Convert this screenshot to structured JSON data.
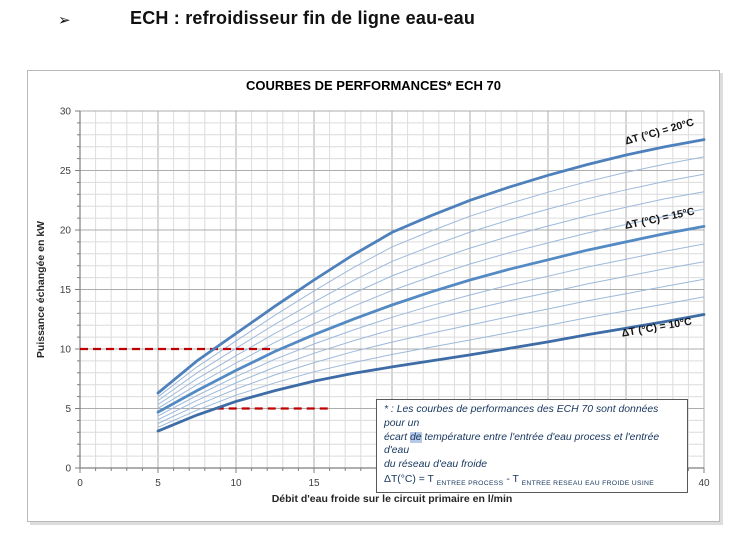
{
  "heading": {
    "bullet": "➢",
    "title": "ECH : refroidisseur fin de ligne eau-eau"
  },
  "chart": {
    "title": "COURBES DE PERFORMANCES* ECH 70"
  },
  "note": {
    "line1": "* : Les courbes de performances des ECH 70 sont données pour un",
    "line2_a": "écart ",
    "line2_b": "de",
    "line2_c": " température entre l'entrée d'eau process et l'entrée d'eau",
    "line3": "du réseau d'eau froide",
    "formula_a": "ΔT(°C) = T ",
    "formula_sub1": "ENTREE PROCESS",
    "formula_b": " - T ",
    "formula_sub2": "ENTREE RESEAU EAU FROIDE USINE"
  },
  "chart_data": {
    "type": "line",
    "title": "COURBES DE PERFORMANCES* ECH 70",
    "xlabel": "Débit d'eau froide sur le circuit primaire en l/min",
    "ylabel": "Puissance échangée en kW",
    "xlim": [
      0,
      40
    ],
    "ylim": [
      0,
      30
    ],
    "x_major_ticks": [
      0,
      5,
      10,
      15,
      20,
      25,
      30,
      35,
      40
    ],
    "y_major_ticks": [
      0,
      5,
      10,
      15,
      20,
      25,
      30
    ],
    "minor_grid_step_x": 1,
    "minor_grid_step_y": 1,
    "grid": true,
    "x": [
      5,
      7.5,
      10,
      12.5,
      15,
      17.5,
      20,
      22.5,
      25,
      27.5,
      30,
      32.5,
      35,
      37.5,
      40
    ],
    "series": [
      {
        "name": "ΔT (°C) = 20°C",
        "deltaT": 20,
        "color": "#4e80bc",
        "values": [
          6.3,
          9.0,
          11.3,
          13.6,
          15.8,
          17.9,
          19.8,
          21.2,
          22.5,
          23.6,
          24.6,
          25.5,
          26.3,
          27.0,
          27.6
        ]
      },
      {
        "name": "ΔT (°C) = 15°C",
        "deltaT": 15,
        "color": "#548ac4",
        "values": [
          4.7,
          6.5,
          8.2,
          9.8,
          11.2,
          12.5,
          13.7,
          14.8,
          15.8,
          16.7,
          17.5,
          18.3,
          19.0,
          19.7,
          20.3
        ]
      },
      {
        "name": "ΔT (°C) = 10°C",
        "deltaT": 10,
        "color": "#3d6ca6",
        "values": [
          3.1,
          4.45,
          5.6,
          6.5,
          7.3,
          7.95,
          8.5,
          9.0,
          9.5,
          10.05,
          10.6,
          11.2,
          11.75,
          12.3,
          12.9
        ]
      }
    ],
    "intermediate_curves": {
      "deltaT_values": [
        11,
        12,
        13,
        14,
        16,
        17,
        18,
        19
      ],
      "color": "#9db9dc",
      "method": "linear interpolation between labeled ΔT curves"
    },
    "series_labels": [
      {
        "text": "ΔT (°C) = 20°C",
        "x": 37.2,
        "y": 28.0,
        "angle": -16
      },
      {
        "text": "ΔT (°C) = 15°C",
        "x": 37.2,
        "y": 20.7,
        "angle": -12
      },
      {
        "text": "ΔT (°C) = 10°C",
        "x": 37.0,
        "y": 11.55,
        "angle": -10
      }
    ],
    "annotations": {
      "red_dashed_color": "#c00000",
      "red_dashed_lines": [
        {
          "y": 10,
          "x_from": 0,
          "x_to": 12.4
        },
        {
          "y": 5,
          "x_from": 8.7,
          "x_to": 16.2
        }
      ]
    },
    "legend_position": "labels-on-curves"
  }
}
